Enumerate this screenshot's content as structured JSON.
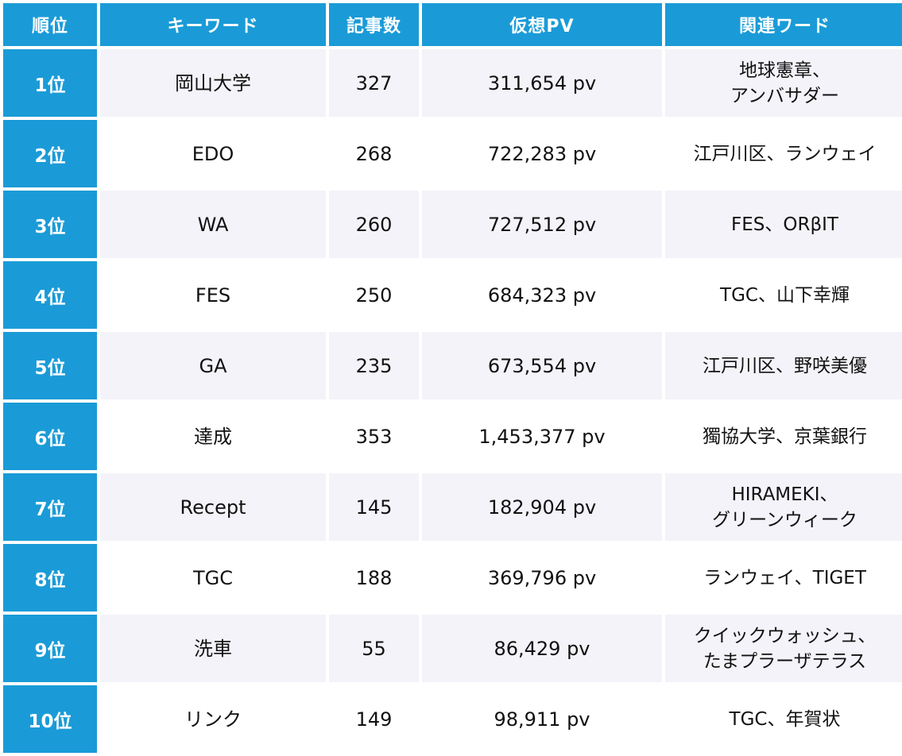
{
  "header": {
    "rank": "順位",
    "keyword": "キーワード",
    "articles": "記事数",
    "pv": "仮想PV",
    "related": "関連ワード"
  },
  "rows": [
    {
      "rank": "1位",
      "keyword": "岡山大学",
      "articles": "327",
      "pv": "311,654 pv",
      "related": "地球憲章、\nアンバサダー"
    },
    {
      "rank": "2位",
      "keyword": "EDO",
      "articles": "268",
      "pv": "722,283 pv",
      "related": "江戸川区、ランウェイ"
    },
    {
      "rank": "3位",
      "keyword": "WA",
      "articles": "260",
      "pv": "727,512 pv",
      "related": "FES、ORβIT"
    },
    {
      "rank": "4位",
      "keyword": "FES",
      "articles": "250",
      "pv": "684,323 pv",
      "related": "TGC、山下幸輝"
    },
    {
      "rank": "5位",
      "keyword": "GA",
      "articles": "235",
      "pv": "673,554 pv",
      "related": "江戸川区、野咲美優"
    },
    {
      "rank": "6位",
      "keyword": "達成",
      "articles": "353",
      "pv": "1,453,377 pv",
      "related": "獨協大学、京葉銀行"
    },
    {
      "rank": "7位",
      "keyword": "Recept",
      "articles": "145",
      "pv": "182,904 pv",
      "related": "HIRAMEKI、\nグリーンウィーク"
    },
    {
      "rank": "8位",
      "keyword": "TGC",
      "articles": "188",
      "pv": "369,796 pv",
      "related": "ランウェイ、TIGET"
    },
    {
      "rank": "9位",
      "keyword": "洗車",
      "articles": "55",
      "pv": "86,429 pv",
      "related": "クイックウォッシュ、\nたまプラーザテラス"
    },
    {
      "rank": "10位",
      "keyword": "リンク",
      "articles": "149",
      "pv": "98,911 pv",
      "related": "TGC、年賀状"
    }
  ],
  "colors": {
    "header_bg": "#1a9bd7",
    "rank_bg": "#1a9bd7",
    "stripe_bg": "#f3f3f9"
  }
}
